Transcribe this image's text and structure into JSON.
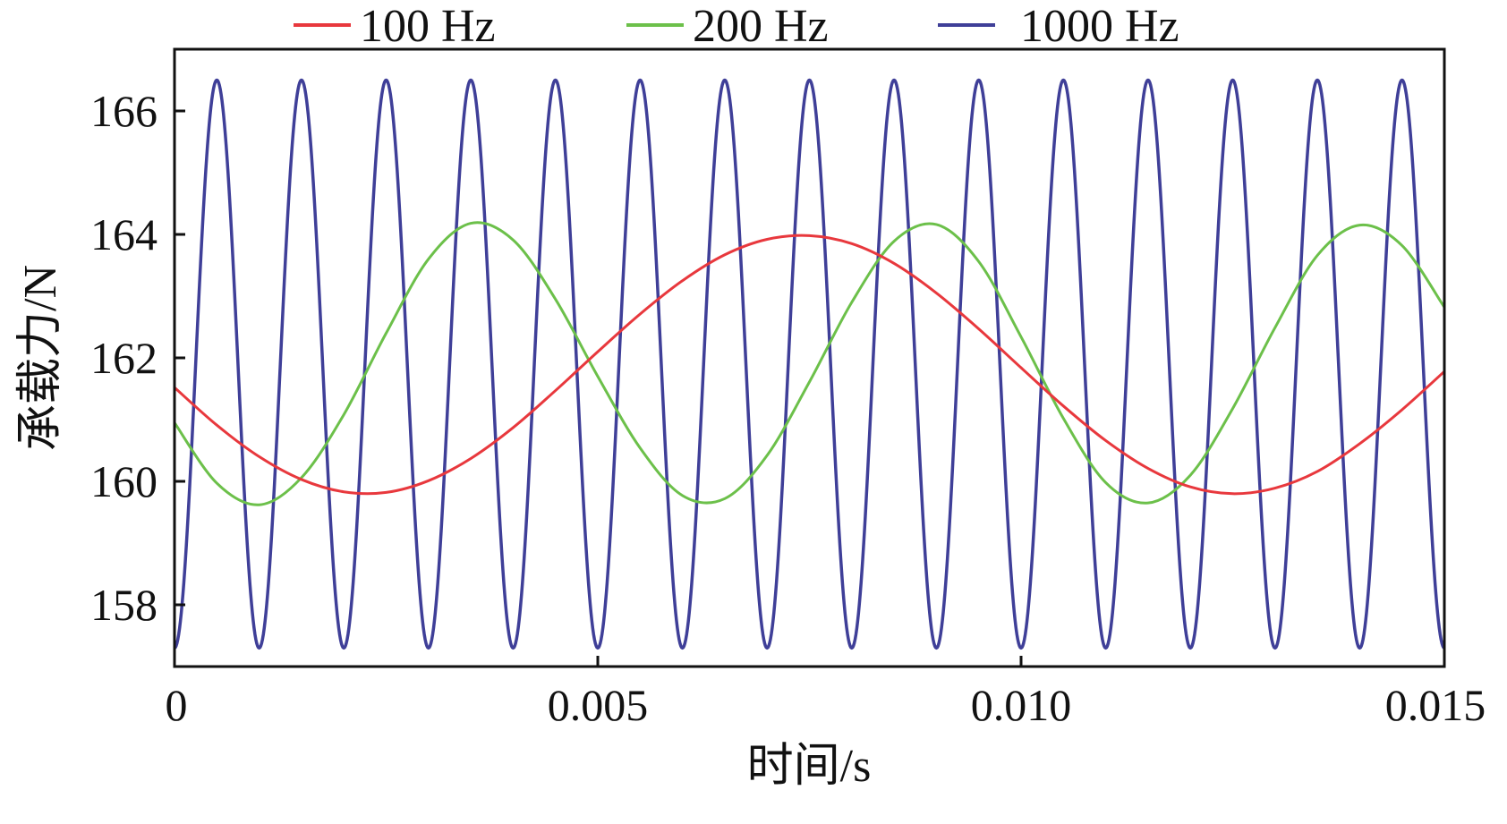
{
  "chart_data": {
    "type": "line",
    "xlabel": "时间/s",
    "ylabel": "承载力/N",
    "xlim": [
      0,
      0.015
    ],
    "ylim": [
      157,
      167
    ],
    "x_ticks": [
      "0",
      "0.005",
      "0.010",
      "0.015"
    ],
    "x_tick_values": [
      0,
      0.005,
      0.01,
      0.015
    ],
    "y_ticks": [
      "158",
      "160",
      "162",
      "164",
      "166"
    ],
    "y_tick_values": [
      158,
      160,
      162,
      164,
      166
    ],
    "grid": false,
    "legend_position": "top",
    "series": [
      {
        "name": "100 Hz",
        "color": "#e8383d",
        "x": [
          0,
          0.0005,
          0.001,
          0.0015,
          0.002,
          0.0025,
          0.003,
          0.0035,
          0.004,
          0.0045,
          0.005,
          0.0055,
          0.006,
          0.0065,
          0.007,
          0.0075,
          0.008,
          0.0085,
          0.009,
          0.0095,
          0.01,
          0.0105,
          0.011,
          0.0115,
          0.012,
          0.0125,
          0.013,
          0.0135,
          0.014,
          0.0145,
          0.015
        ],
        "y": [
          161.52,
          160.91,
          160.4,
          160.03,
          159.83,
          159.82,
          160.01,
          160.37,
          160.87,
          161.47,
          162.1,
          162.71,
          163.25,
          163.67,
          163.92,
          163.98,
          163.85,
          163.53,
          163.05,
          162.47,
          161.84,
          161.22,
          160.66,
          160.21,
          159.91,
          159.8,
          159.89,
          160.16,
          160.61,
          161.16,
          161.78
        ]
      },
      {
        "name": "200 Hz",
        "color": "#6cc04a",
        "x": [
          0,
          0.0005,
          0.001,
          0.0015,
          0.002,
          0.0025,
          0.003,
          0.0035,
          0.004,
          0.0045,
          0.005,
          0.0055,
          0.006,
          0.0065,
          0.007,
          0.0075,
          0.008,
          0.0085,
          0.009,
          0.0095,
          0.01,
          0.0105,
          0.011,
          0.0115,
          0.012,
          0.0125,
          0.013,
          0.0135,
          0.014,
          0.0145,
          0.015
        ],
        "y": [
          160.95,
          159.97,
          159.62,
          160.06,
          161.08,
          162.4,
          163.6,
          164.18,
          163.91,
          162.95,
          161.7,
          160.54,
          159.77,
          159.72,
          160.42,
          161.61,
          162.9,
          163.89,
          164.16,
          163.56,
          162.34,
          161.02,
          159.98,
          159.65,
          160.1,
          161.18,
          162.49,
          163.66,
          164.15,
          163.82,
          162.82
        ]
      },
      {
        "name": "1000 Hz",
        "color": "#3f3f98",
        "frequency_hz": 1000,
        "baseline": 161.9,
        "amplitude": 4.6,
        "first_peak_s": 0.0005,
        "x_range": [
          0,
          0.015
        ],
        "peak_value": 166.5,
        "trough_value": 157.3
      }
    ]
  }
}
